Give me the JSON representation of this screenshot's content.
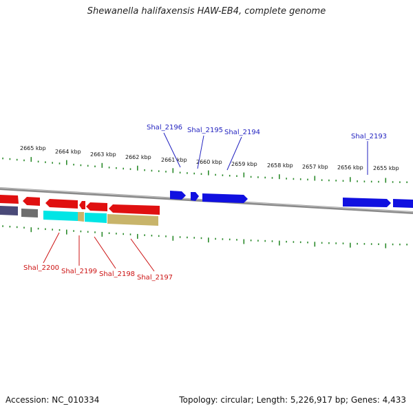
{
  "title": "Shewanella halifaxensis HAW-EB4, complete genome",
  "footer": {
    "accession": "Accession: NC_010334",
    "summary": "Topology: circular; Length: 5,226,917 bp; Genes: 4,433"
  },
  "colors": {
    "forward_gene": "#1010e0",
    "reverse_gene": "#e01010",
    "ticks": "#2a8a2a",
    "backbone": "#8a8a8a",
    "label_forward": "#1f1fbf",
    "label_reverse": "#cc1111",
    "cog_cyan": "#00e5e5",
    "cog_olive": "#c8b46a",
    "cog_gray": "#6e6e6e",
    "cog_slate": "#4a4a78"
  },
  "scale_labels": [
    "2665 kbp",
    "2664 kbp",
    "2663 kbp",
    "2662 kbp",
    "2661 kbp",
    "2660 kbp",
    "2659 kbp",
    "2658 kbp",
    "2657 kbp",
    "2656 kbp",
    "2655 kbp"
  ],
  "genes_forward": [
    "Shal_2196",
    "Shal_2195",
    "Shal_2194",
    "Shal_2193"
  ],
  "genes_reverse": [
    "Shal_2200",
    "Shal_2199",
    "Shal_2198",
    "Shal_2197"
  ]
}
